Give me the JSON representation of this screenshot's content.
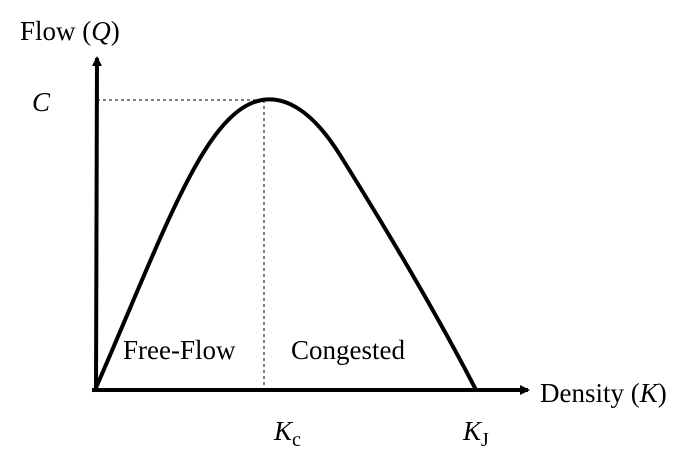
{
  "axes": {
    "y_label_text": "Flow (",
    "y_label_var": "Q",
    "y_label_close": ")",
    "x_label_text": "Density (",
    "x_label_var": "K",
    "x_label_close": ")"
  },
  "markers": {
    "capacity": "C",
    "critical_var": "K",
    "critical_sub": "c",
    "jam_var": "K",
    "jam_sub": "J"
  },
  "regions": {
    "free_flow": "Free-Flow",
    "congested": "Congested"
  },
  "colors": {
    "curve": "#000000",
    "axis": "#000000",
    "guide": "#000000"
  }
}
